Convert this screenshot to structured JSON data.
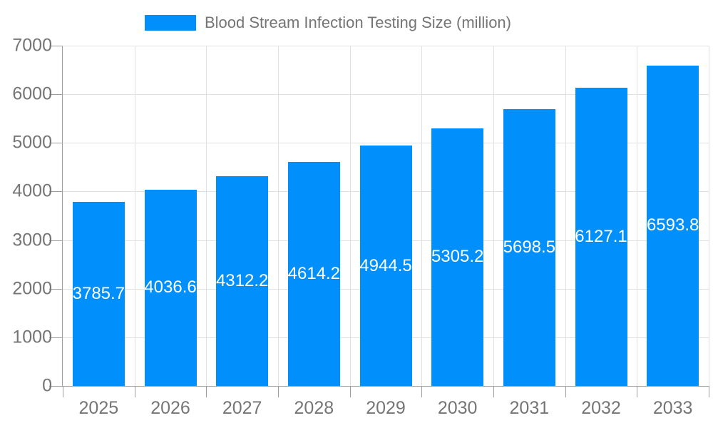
{
  "legend": {
    "series_label": "Blood Stream Infection Testing Size (million)",
    "swatch_color": "#008FFB"
  },
  "chart_data": {
    "type": "bar",
    "title": "Blood Stream Infection Testing Size (million)",
    "categories": [
      "2025",
      "2026",
      "2027",
      "2028",
      "2029",
      "2030",
      "2031",
      "2032",
      "2033"
    ],
    "series": [
      {
        "name": "Blood Stream Infection Testing Size (million)",
        "values": [
          3785.7,
          4036.6,
          4312.2,
          4614.2,
          4944.5,
          5305.2,
          5698.5,
          6127.1,
          6593.8
        ]
      }
    ],
    "data_labels": [
      "3785.7",
      "4036.6",
      "4312.2",
      "4614.2",
      "4944.5",
      "5305.2",
      "5698.5",
      "6127.1",
      "6593.8"
    ],
    "xlabel": "",
    "ylabel": "",
    "ylim": [
      0,
      7000
    ],
    "ytick_step": 1000,
    "ytick_labels": [
      "0",
      "1000",
      "2000",
      "3000",
      "4000",
      "5000",
      "6000",
      "7000"
    ],
    "grid": true,
    "legend_position": "top",
    "bar_color": "#008FFB",
    "data_label_color": "#FFFFFF",
    "axis_text_color": "#757575",
    "grid_color": "#E0E0E0",
    "axis_line_color": "#9E9E9E",
    "background_color": "#FFFFFF"
  }
}
